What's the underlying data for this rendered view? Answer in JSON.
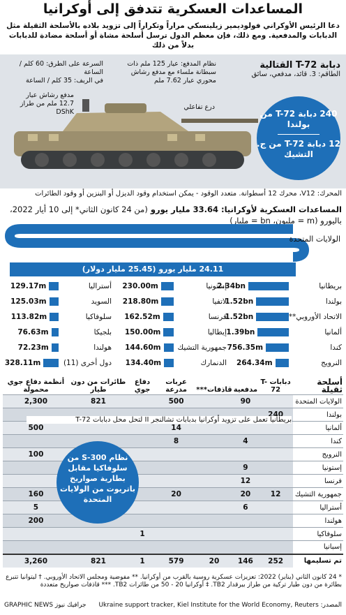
{
  "title": "المساعدات العسكرية تتدفق إلى أوكرانيا",
  "intro": "دعا الرئيس الأوكراني فولوديمير زيلينسكي مراراً وتكراراً إلى تزويد بلاده بالأسلحة الثقيلة مثل الدبابات والمدفعية. ومع ذلك، فإن معظم الدول ترسل أسلحة مشاة أو أسلحة مضادة للدبابات بدلاً من ذلك",
  "tank": {
    "name": "دبابة T-72 القتالية",
    "crew": "الطاقم: 3. قائد، مدفعي، سائق",
    "speed": "السرعة على الطرق: 60 كلم / الساعة",
    "speed2": "في الريف: 35 كلم / الساعة",
    "gun": "نظام المدفع: عيار 125 ملم ذات سبطانة ملساء مع مدفع رشاش محوري عيار 7.62 ملم",
    "mg": "مدفع رشاش عيار 12.7 ملم من طراز DShK",
    "armor": "درع تفاعلي",
    "badge1": "240 دبابة T-72 من بولندا",
    "badge2": "12 دبابة T-72 من ج. التشيك",
    "engine": "المحرك: V12، محرك 12 أسطوانة. متعدد الوقود - يمكن استخدام وقود الديزل أو البنزين أو وقود الطائرات"
  },
  "aid_title": "المساعدات العسكرية لأوكرانيا: 33.64 مليار يورو",
  "aid_sub": "(من 24 كانون الثاني* إلى 10 أيار 2022، باليورو (m = مليون، bn = مليار)",
  "us_label": "الولايات المتحدة",
  "us_value": "24.11 مليار يورو (25.45 مليار دولار)",
  "colors": {
    "accent": "#1e6fb8",
    "panel": "#dfe3e8"
  },
  "chart_data": {
    "type": "bar",
    "title": "المساعدات العسكرية لأوكرانيا: 33.64 مليار يورو",
    "unit": "EUR",
    "series": [
      {
        "country": "بريطانيا",
        "label": "2.34bn",
        "value": 2340
      },
      {
        "country": "بولندا",
        "label": "1.52bn",
        "value": 1520
      },
      {
        "country": "الاتحاد الأوروبي**",
        "label": "1.52bn",
        "value": 1520
      },
      {
        "country": "ألمانيا",
        "label": "1.39bn",
        "value": 1390
      },
      {
        "country": "كندا",
        "label": "756.35m",
        "value": 756.35
      },
      {
        "country": "النرويج",
        "label": "264.34m",
        "value": 264.34
      },
      {
        "country": "إستونيا",
        "label": "230.00m",
        "value": 230.0
      },
      {
        "country": "لاتفيا",
        "label": "218.80m",
        "value": 218.8
      },
      {
        "country": "فرنسا",
        "label": "162.52m",
        "value": 162.52
      },
      {
        "country": "إيطاليا",
        "label": "150.00m",
        "value": 150.0
      },
      {
        "country": "جمهورية التشيك",
        "label": "144.60m",
        "value": 144.6
      },
      {
        "country": "الدنمارك",
        "label": "134.40m",
        "value": 134.4
      },
      {
        "country": "أستراليا",
        "label": "129.17m",
        "value": 129.17
      },
      {
        "country": "السويد",
        "label": "125.03m",
        "value": 125.03
      },
      {
        "country": "سلوفاكيا",
        "label": "113.82m",
        "value": 113.82
      },
      {
        "country": "بلجيكا",
        "label": "76.63m",
        "value": 76.63
      },
      {
        "country": "هولندا",
        "label": "72.23m",
        "value": 72.23
      },
      {
        "country": "دول أخرى (11)",
        "label": "328.11m",
        "value": 328.11
      }
    ]
  },
  "table": {
    "heading": "أسلحة ثقيلة",
    "columns": [
      "دبابات T-72",
      "مدفعية",
      "قاذفات***",
      "عربات مدرعة",
      "دفاع جوي",
      "طائرات من دون طيار",
      "أنظمة دفاع جوي محمولة"
    ],
    "rows": [
      {
        "name": "الولايات المتحدة",
        "v": [
          "",
          "90",
          "",
          "500",
          "",
          "821",
          "2,300"
        ]
      },
      {
        "name": "بولندا",
        "v": [
          "240",
          "",
          "",
          "",
          "",
          "",
          ""
        ]
      },
      {
        "name": "ألمانيا",
        "v": [
          "",
          "",
          "",
          "14",
          "",
          "",
          "500"
        ]
      },
      {
        "name": "كندا",
        "v": [
          "",
          "4",
          "",
          "8",
          "",
          "",
          ""
        ]
      },
      {
        "name": "النرويج",
        "v": [
          "",
          "",
          "",
          "",
          "",
          "",
          "100"
        ]
      },
      {
        "name": "إستونيا",
        "v": [
          "",
          "9",
          "",
          "",
          "",
          "",
          ""
        ]
      },
      {
        "name": "فرنسا",
        "v": [
          "",
          "12",
          "",
          "",
          "",
          "",
          ""
        ]
      },
      {
        "name": "جمهورية التشيك",
        "v": [
          "12",
          "20",
          "",
          "20",
          "",
          "",
          "160"
        ]
      },
      {
        "name": "أستراليا",
        "v": [
          "",
          "6",
          "",
          "",
          "",
          "",
          "5"
        ]
      },
      {
        "name": "هولندا",
        "v": [
          "",
          "",
          "",
          "",
          "",
          "",
          "200"
        ]
      },
      {
        "name": "سلوفاكيا",
        "v": [
          "",
          "",
          "",
          "",
          "1",
          "",
          ""
        ]
      },
      {
        "name": "إسبانيا",
        "v": [
          "",
          "",
          "",
          "",
          "",
          "",
          ""
        ]
      },
      {
        "name": "تم تسليمها",
        "v": [
          "252",
          "146",
          "20",
          "579",
          "1",
          "821",
          "3,260"
        ]
      }
    ],
    "uk_note": "بريطانيا تعمل على تزويد أوكرانيا بدبابات تشالنجر II لتحل محل دبابات T-72",
    "s300": "نظام S-300 من سلوفاكيا مقابل بطارية صواريخ باتريوت من الولايات المتحدة"
  },
  "footnotes": "* 24 كانون الثاني (يناير) 2022: تعزيزات عسكرية روسية بالقرب من أوكرانيا. ** مفوضية ومجلس الاتحاد الأوروبي. † ليتوانيا تتبرع بطائرة من دون طيار تركية من طراز بيرقدار TB2. ‡ أوكرانيا 20 - 50 من طائرات TB2. *** قاذفات صواريخ متعددة",
  "source": "المصدر: Ukraine support tracker, Kiel Institute for the World Economy, Reuters",
  "credit": "GRAPHIC NEWS جرافيك نيوز"
}
